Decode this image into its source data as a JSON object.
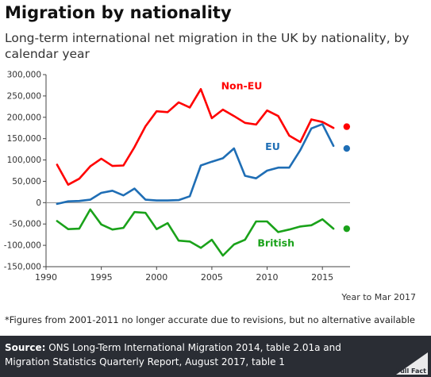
{
  "title": "Migration by nationality",
  "subtitle": "Long-term international net migration in the UK by nationality, by calendar year",
  "footnote": "*Figures from 2001-2011 no longer accurate due to revisions, but no alternative available",
  "source": {
    "label": "Source:",
    "text": " ONS Long-Term International Migration 2014, table 2.01a and Migration Statistics Quarterly Report, August 2017, table 1"
  },
  "brand": "Full Fact",
  "chart_data": {
    "type": "line",
    "xlim": [
      1990,
      2017.5
    ],
    "ylim": [
      -150000,
      300000
    ],
    "y_ticks": [
      {
        "value": 300000,
        "label": "300,000"
      },
      {
        "value": 250000,
        "label": "250,000"
      },
      {
        "value": 200000,
        "label": "200,000"
      },
      {
        "value": 150000,
        "label": "150,000"
      },
      {
        "value": 100000,
        "label": "100,000"
      },
      {
        "value": 50000,
        "label": "50,000"
      },
      {
        "value": 0,
        "label": "0"
      },
      {
        "value": -50000,
        "label": "-50,000"
      },
      {
        "value": -100000,
        "label": "-100,000"
      },
      {
        "value": -150000,
        "label": "-150,000"
      }
    ],
    "x_ticks": [
      {
        "value": 1990,
        "label": "1990"
      },
      {
        "value": 1995,
        "label": "1995"
      },
      {
        "value": 2000,
        "label": "2000"
      },
      {
        "value": 2005,
        "label": "2005"
      },
      {
        "value": 2010,
        "label": "2010"
      },
      {
        "value": 2015,
        "label": "2015"
      }
    ],
    "x": [
      1991,
      1992,
      1993,
      1994,
      1995,
      1996,
      1997,
      1998,
      1999,
      2000,
      2001,
      2002,
      2003,
      2004,
      2005,
      2006,
      2007,
      2008,
      2009,
      2010,
      2011,
      2012,
      2013,
      2014,
      2015,
      2016
    ],
    "series": [
      {
        "name": "Non-EU",
        "color": "#ff0000",
        "values": [
          89000,
          42000,
          56000,
          85000,
          103000,
          86000,
          87000,
          130000,
          179000,
          214000,
          212000,
          235000,
          223000,
          266000,
          198000,
          218000,
          203000,
          187000,
          183000,
          216000,
          203000,
          157000,
          142000,
          195000,
          189000,
          175000
        ],
        "end_point": {
          "x": 2017.2,
          "y": 178000
        }
      },
      {
        "name": "EU",
        "color": "#1f6eb5",
        "values": [
          -3000,
          3000,
          4000,
          7000,
          23000,
          28000,
          17000,
          33000,
          7000,
          5000,
          5000,
          6000,
          15000,
          87000,
          96000,
          104000,
          127000,
          63000,
          57000,
          75000,
          82000,
          82000,
          123000,
          174000,
          184000,
          133000
        ],
        "end_point": {
          "x": 2017.2,
          "y": 127000
        }
      },
      {
        "name": "British",
        "color": "#1aa21a",
        "values": [
          -43000,
          -62000,
          -61000,
          -16000,
          -51000,
          -63000,
          -59000,
          -22000,
          -24000,
          -62000,
          -48000,
          -89000,
          -91000,
          -106000,
          -87000,
          -124000,
          -98000,
          -87000,
          -44000,
          -44000,
          -69000,
          -63000,
          -56000,
          -53000,
          -39000,
          -61000
        ],
        "end_point": {
          "x": 2017.2,
          "y": -61000
        }
      }
    ],
    "axis_note": "Year to Mar 2017",
    "grid": false
  }
}
